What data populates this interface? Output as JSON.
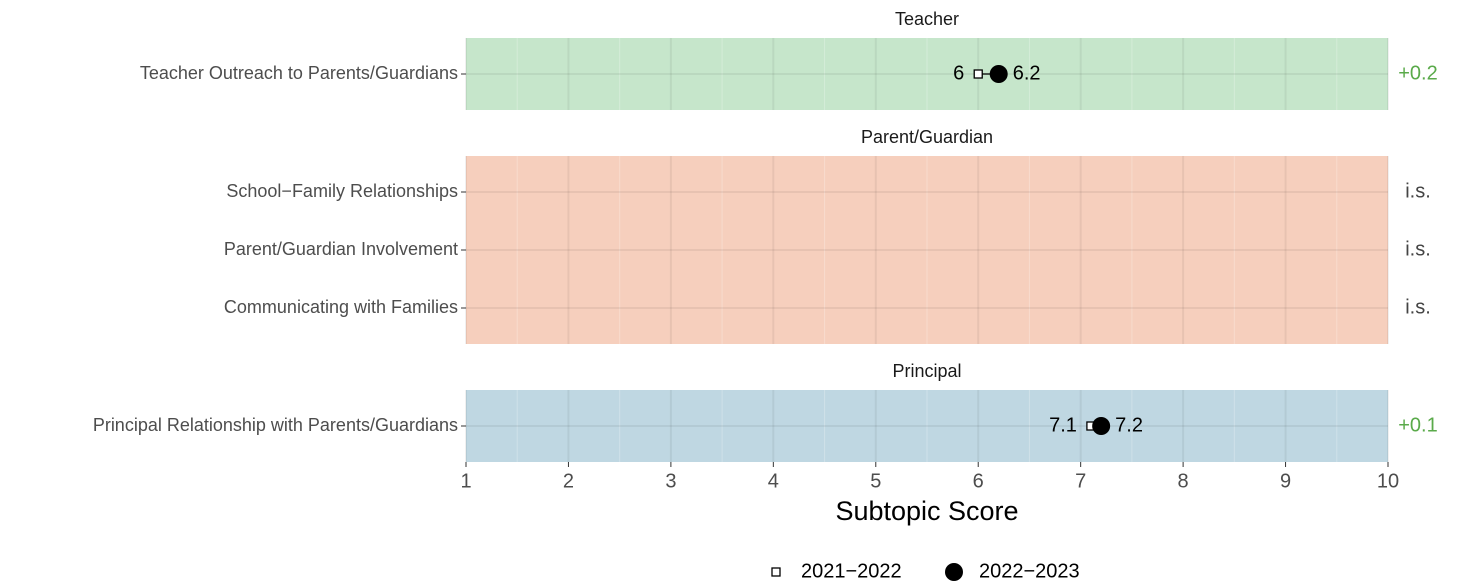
{
  "chart_data": {
    "type": "dot",
    "x_label": "Subtopic Score",
    "xlim": [
      1,
      10
    ],
    "xticks": [
      1,
      2,
      3,
      4,
      5,
      6,
      7,
      8,
      9,
      10
    ],
    "xticks_minor": [
      1.5,
      2.5,
      3.5,
      4.5,
      5.5,
      6.5,
      7.5,
      8.5,
      9.5
    ],
    "grid": true,
    "legend": "bottom",
    "series": [
      {
        "name": "2021−2022",
        "marker": "square",
        "color": "#000000"
      },
      {
        "name": "2022−2023",
        "marker": "circle",
        "color": "#000000"
      }
    ],
    "panels": [
      {
        "title": "Teacher",
        "color": "#c6e6cb",
        "categories": [
          "Teacher Outreach to Parents/Guardians"
        ],
        "values": [
          [
            6
          ],
          [
            6.2
          ]
        ],
        "changes": [
          {
            "label": "+0.2",
            "color": "#5aaa4a"
          }
        ]
      },
      {
        "title": "Parent/Guardian",
        "color": "#f6cfbd",
        "categories": [
          "School−Family Relationships",
          "Parent/Guardian Involvement",
          "Communicating with Families"
        ],
        "values": [
          [
            null,
            null,
            null
          ],
          [
            null,
            null,
            null
          ]
        ],
        "changes": [
          {
            "label": "i.s.",
            "color": "#444444"
          },
          {
            "label": "i.s.",
            "color": "#444444"
          },
          {
            "label": "i.s.",
            "color": "#444444"
          }
        ]
      },
      {
        "title": "Principal",
        "color": "#bfd7e2",
        "categories": [
          "Principal Relationship with Parents/Guardians"
        ],
        "values": [
          [
            7.1
          ],
          [
            7.2
          ]
        ],
        "changes": [
          {
            "label": "+0.1",
            "color": "#5aaa4a"
          }
        ]
      }
    ]
  }
}
